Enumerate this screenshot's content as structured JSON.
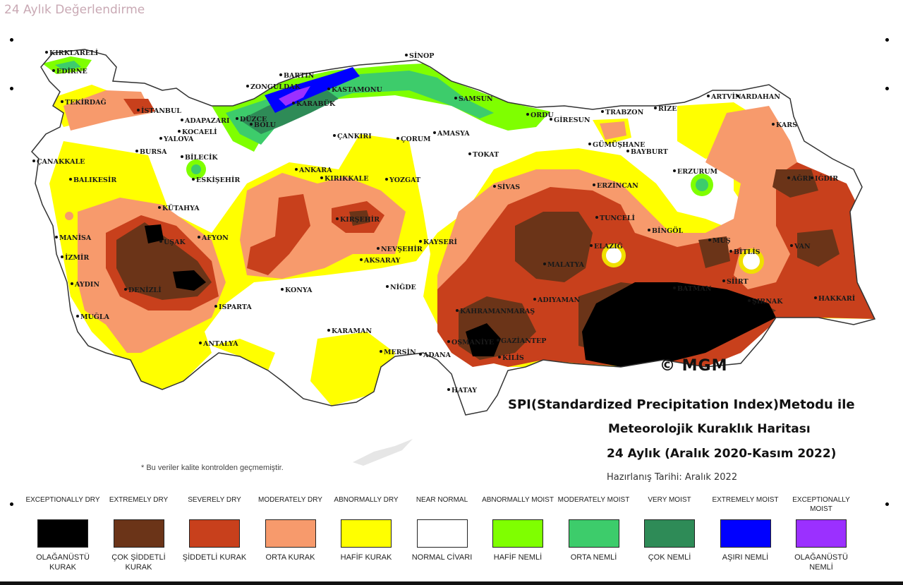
{
  "header": {
    "title": "24 Aylık Değerlendirme"
  },
  "map": {
    "cities": [
      "KIRKLARELİ",
      "EDİRNE",
      "TEKİRDAĞ",
      "İSTANBUL",
      "ADAPAZARI",
      "DÜZCE",
      "BOLU",
      "ZONGULDAK",
      "BARTIN",
      "KARABÜK",
      "KASTAMONU",
      "SİNOP",
      "SAMSUN",
      "ORDU",
      "GİRESUN",
      "TRABZON",
      "RİZE",
      "ARTVİN",
      "ARDAHAN",
      "KARS",
      "IĞDIR",
      "AĞRI",
      "ERZURUM",
      "BAYBURT",
      "GÜMÜŞHANE",
      "ERZİNCAN",
      "TOKAT",
      "AMASYA",
      "ÇORUM",
      "ÇANKIRI",
      "ANKARA",
      "KIRIKKALE",
      "YOZGAT",
      "SİVAS",
      "KIRŞEHİR",
      "NEVŞEHİR",
      "KAYSERİ",
      "AKSARAY",
      "NİĞDE",
      "KONYA",
      "KARAMAN",
      "MERSİN",
      "ADANA",
      "OSMANİYE",
      "HATAY",
      "KAHRAMANMARAŞ",
      "GAZİANTEP",
      "KİLİS",
      "ADIYAMAN",
      "MALATYA",
      "TUNCELİ",
      "ELAZIĞ",
      "BİNGÖL",
      "BİTLİS",
      "VAN",
      "MUŞ",
      "BATMAN",
      "SİİRT",
      "ŞIRNAK",
      "HAKKARİ",
      "ÇANAKKALE",
      "BALIKESİR",
      "BURSA",
      "YALOVA",
      "BİLECİK",
      "ESKİŞEHİR",
      "KÜTAHYA",
      "AFYON",
      "MANİSA",
      "İZMİR",
      "AYDIN",
      "DENİZLİ",
      "UŞAK",
      "ISPARTA",
      "MUĞLA",
      "ANTALYA",
      "KOCAELİ"
    ],
    "copyright": "© MGM",
    "title_line1": "SPI(Standardized Precipitation Index)Metodu ile",
    "title_line2": "Meteorolojik Kuraklık Haritası",
    "title_line3": "24 Aylık (Aralık 2020-Kasım 2022)",
    "prepared": "Hazırlanış Tarihi: Aralık 2022",
    "note": "* Bu veriler kalite kontrolden geçmemiştir."
  },
  "legend": [
    {
      "en": "EXCEPTIONALLY DRY",
      "tr": "OLAĞANÜSTÜ KURAK",
      "color": "#000000"
    },
    {
      "en": "EXTREMELY DRY",
      "tr": "ÇOK ŞİDDETLİ KURAK",
      "color": "#6b3418"
    },
    {
      "en": "SEVERELY DRY",
      "tr": "ŞİDDETLİ KURAK",
      "color": "#c8401c"
    },
    {
      "en": "MODERATELY DRY",
      "tr": "ORTA KURAK",
      "color": "#f79a6c"
    },
    {
      "en": "ABNORMALLY DRY",
      "tr": "HAFİF KURAK",
      "color": "#ffff00"
    },
    {
      "en": "NEAR NORMAL",
      "tr": "NORMAL CİVARI",
      "color": "#ffffff"
    },
    {
      "en": "ABNORMALLY MOIST",
      "tr": "HAFİF NEMLİ",
      "color": "#7fff00"
    },
    {
      "en": "MODERATELY MOIST",
      "tr": "ORTA NEMLİ",
      "color": "#3dcc6b"
    },
    {
      "en": "VERY MOIST",
      "tr": "ÇOK NEMLİ",
      "color": "#2e8b57"
    },
    {
      "en": "EXTREMELY MOIST",
      "tr": "AŞIRI NEMLİ",
      "color": "#0000ff"
    },
    {
      "en": "EXCEPTIONALLY MOIST",
      "tr": "OLAĞANÜSTÜ NEMLİ",
      "color": "#9b30ff"
    }
  ]
}
